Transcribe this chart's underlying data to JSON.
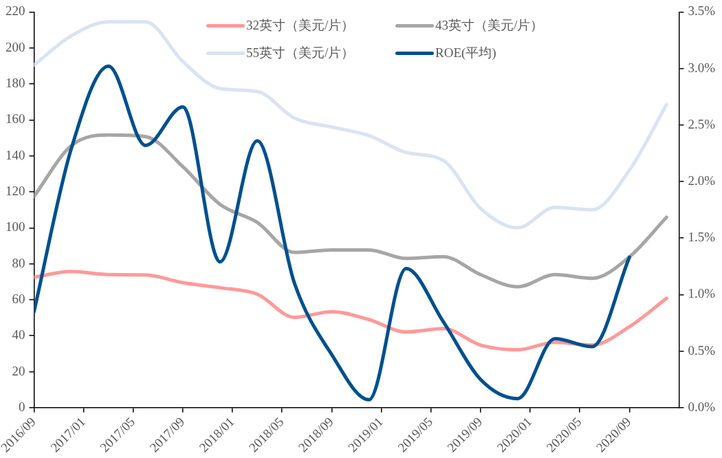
{
  "chart_data": {
    "type": "line",
    "x": [
      "2016-09",
      "2016-12",
      "2017-03",
      "2017-06",
      "2017-09",
      "2017-12",
      "2018-03",
      "2018-06",
      "2018-09",
      "2018-12",
      "2019-03",
      "2019-06",
      "2019-09",
      "2019-12",
      "2020-03",
      "2020-06",
      "2020-09",
      "2020-12"
    ],
    "series": [
      {
        "name": "32英寸（美元/片）",
        "color": "#ff9999",
        "values": [
          72.5,
          75.7,
          74,
          73.8,
          69.5,
          66.7,
          63.1,
          50.2,
          53.4,
          49,
          42.1,
          44,
          34.8,
          32.2,
          36.4,
          34.8,
          45,
          60.8
        ]
      },
      {
        "name": "43英寸（美元/片）",
        "color": "#a6a6a6",
        "values": [
          117.5,
          145.6,
          151.6,
          150.7,
          134,
          113,
          103,
          86.3,
          87.7,
          87.7,
          83,
          84,
          74,
          67.2,
          74,
          71.9,
          83.8,
          105.9
        ]
      },
      {
        "name": "55英寸（美元/片）",
        "color": "#dae3f3",
        "values": [
          190.5,
          206.7,
          214.5,
          214.5,
          192.4,
          177.4,
          175.8,
          161,
          156,
          151.3,
          141.9,
          137.4,
          110.8,
          100,
          111.4,
          110,
          132,
          168.5
        ]
      },
      {
        "name": "ROE(平均)",
        "color": "#00508f",
        "axis": "y2",
        "x": [
          "2016-09",
          "2016-12",
          "2017-03",
          "2017-06",
          "2017-09",
          "2017-12",
          "2018-03",
          "2018-06",
          "2018-09",
          "2018-12",
          "2019-03",
          "2019-06",
          "2019-09",
          "2019-12",
          "2020-03",
          "2020-06",
          "2020-09"
        ],
        "values": [
          0.85,
          2.29,
          3.02,
          2.32,
          2.66,
          1.29,
          2.36,
          1.1,
          0.47,
          0.07,
          1.23,
          0.76,
          0.25,
          0.08,
          0.61,
          0.54,
          1.33
        ]
      }
    ],
    "xlim": [
      "2016-09",
      "2021-01"
    ],
    "xticks": [
      {
        "value": "2016-09",
        "label": "2016/09"
      },
      {
        "value": "2017-01",
        "label": "2017/01"
      },
      {
        "value": "2017-05",
        "label": "2017/05"
      },
      {
        "value": "2017-09",
        "label": "2017/09"
      },
      {
        "value": "2018-01",
        "label": "2018/01"
      },
      {
        "value": "2018-05",
        "label": "2018/05"
      },
      {
        "value": "2018-09",
        "label": "2018/09"
      },
      {
        "value": "2019-01",
        "label": "2019/01"
      },
      {
        "value": "2019-05",
        "label": "2019/05"
      },
      {
        "value": "2019-09",
        "label": "2019/09"
      },
      {
        "value": "2020-01",
        "label": "2020/01"
      },
      {
        "value": "2020-05",
        "label": "2020/05"
      },
      {
        "value": "2020-09",
        "label": "2020/09"
      }
    ],
    "ylim": [
      0,
      220
    ],
    "yticks": [
      0,
      20,
      40,
      60,
      80,
      100,
      120,
      140,
      160,
      180,
      200,
      220
    ],
    "y2lim": [
      0,
      3.5
    ],
    "y2ticks": [
      {
        "value": 0,
        "label": "0.0%"
      },
      {
        "value": 0.5,
        "label": "0.5%"
      },
      {
        "value": 1,
        "label": "1.0%"
      },
      {
        "value": 1.5,
        "label": "1.5%"
      },
      {
        "value": 2,
        "label": "2.0%"
      },
      {
        "value": 2.5,
        "label": "2.5%"
      },
      {
        "value": 3,
        "label": "3.0%"
      },
      {
        "value": 3.5,
        "label": "3.5%"
      }
    ],
    "grid": false,
    "legend": "top",
    "marker": "none",
    "line_style": "solid"
  }
}
